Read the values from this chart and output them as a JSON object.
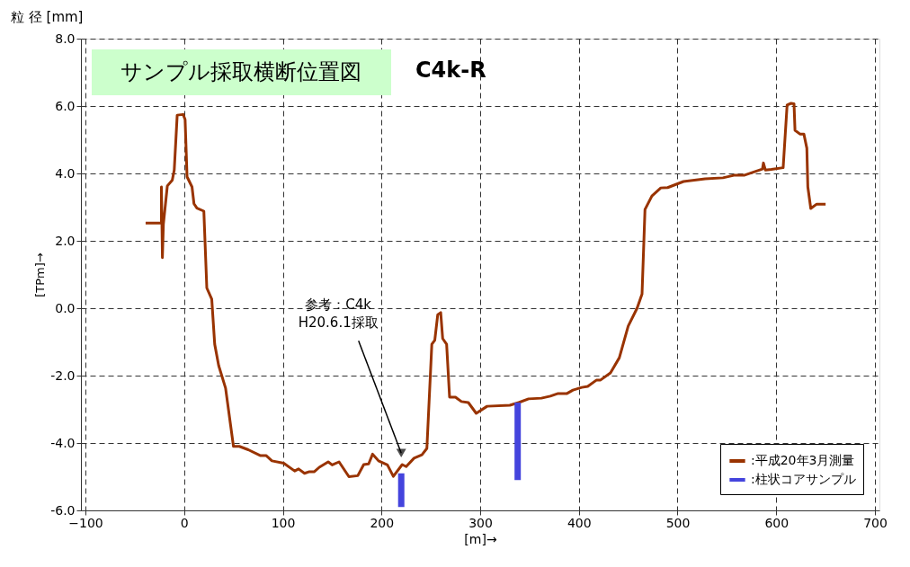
{
  "chart_data": {
    "type": "line",
    "title": "サンプル採取横断位置図",
    "subtitle": "C4k-R",
    "xlabel": "[m]→",
    "ylabel": "[TPm]→",
    "xlim": [
      -100,
      700
    ],
    "xticks": [
      -100,
      0,
      100,
      200,
      300,
      400,
      500,
      600,
      700
    ],
    "ylim": [
      -6,
      8
    ],
    "yticks": [
      {
        "value": -6,
        "label": "-6.0"
      },
      {
        "value": -4,
        "label": "-4.0"
      },
      {
        "value": -2,
        "label": "-2.0"
      },
      {
        "value": 0,
        "label": "0.0"
      },
      {
        "value": 2,
        "label": "2.0"
      },
      {
        "value": 4,
        "label": "4.0"
      },
      {
        "value": 6,
        "label": "6.0"
      },
      {
        "value": 8,
        "label": "8.0"
      }
    ],
    "grid": true,
    "line_style": "solid",
    "marker": "none",
    "legend": "bottom right",
    "annotations": [
      "粒 径 [mm]",
      {
        "text": "参考：C4k\nH20.6.1採取",
        "x": 220,
        "y": -4.3
      }
    ],
    "series": [
      {
        "name": ":平成20年3月測量",
        "color": "#993300",
        "x": [
          -39,
          -23,
          -23,
          -22,
          -21,
          -17,
          -12,
          -10,
          -7,
          -1,
          1,
          3,
          8,
          10,
          13,
          20,
          23,
          28,
          31,
          35,
          42,
          50,
          56,
          65,
          77,
          83,
          89,
          101,
          112,
          116,
          122,
          127,
          132,
          137,
          146,
          150,
          157,
          167,
          176,
          182,
          187,
          191,
          197,
          206,
          212,
          221,
          225,
          233,
          241,
          246,
          251,
          254,
          257,
          260,
          262,
          266,
          269,
          275,
          281,
          288,
          296,
          307,
          330,
          339,
          349,
          362,
          371,
          379,
          388,
          394,
          403,
          409,
          418,
          422,
          432,
          441,
          450,
          459,
          464,
          467,
          474,
          483,
          490,
          506,
          528,
          546,
          558,
          568,
          586,
          587,
          589,
          595,
          607,
          611,
          615,
          618,
          619,
          624,
          628,
          631,
          632,
          635,
          641,
          650
        ],
        "values": [
          2.53,
          2.53,
          3.6,
          1.5,
          2.5,
          3.63,
          3.8,
          4.1,
          5.73,
          5.75,
          5.6,
          3.9,
          3.6,
          3.1,
          2.97,
          2.88,
          0.6,
          0.27,
          -1.07,
          -1.7,
          -2.37,
          -4.1,
          -4.1,
          -4.2,
          -4.37,
          -4.37,
          -4.53,
          -4.6,
          -4.83,
          -4.77,
          -4.9,
          -4.85,
          -4.85,
          -4.72,
          -4.56,
          -4.65,
          -4.56,
          -5.0,
          -4.97,
          -4.64,
          -4.62,
          -4.33,
          -4.53,
          -4.65,
          -4.99,
          -4.64,
          -4.7,
          -4.45,
          -4.35,
          -4.16,
          -1.07,
          -0.95,
          -0.19,
          -0.13,
          -0.9,
          -1.07,
          -2.64,
          -2.64,
          -2.77,
          -2.8,
          -3.12,
          -2.91,
          -2.88,
          -2.8,
          -2.69,
          -2.67,
          -2.61,
          -2.53,
          -2.53,
          -2.43,
          -2.35,
          -2.32,
          -2.13,
          -2.13,
          -1.92,
          -1.47,
          -0.53,
          0,
          0.42,
          2.93,
          3.33,
          3.57,
          3.58,
          3.76,
          3.84,
          3.87,
          3.95,
          3.95,
          4.13,
          4.31,
          4.1,
          4.12,
          4.17,
          6.03,
          6.08,
          6.07,
          5.28,
          5.17,
          5.17,
          4.75,
          3.6,
          2.96,
          3.09,
          3.09
        ]
      },
      {
        "name": ":柱状コアサンプル",
        "type": "bar",
        "color": "#4444dd",
        "x": [
          220,
          338
        ],
        "base": [
          -5.9,
          -5.1
        ],
        "values": [
          1.0,
          2.3
        ]
      }
    ]
  }
}
